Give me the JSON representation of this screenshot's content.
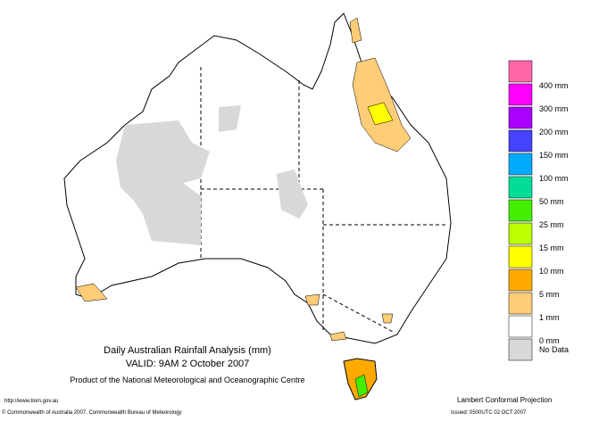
{
  "map": {
    "title": "Daily Australian Rainfall Analysis (mm)",
    "valid": "VALID: 9AM  2 October 2007",
    "product": "Product of the National Meteorological and Oceanographic Centre",
    "url": "http://www.bom.gov.au",
    "copyright": "© Commonwealth of Australia 2007, Commonwealth Bureau of Meteorology",
    "projection": "Lambert Conformal Projection",
    "issued": "Issued: 0500UTC 02 OCT 2007"
  },
  "legend": {
    "items": [
      {
        "label": "400 mm",
        "color": "#ff66aa"
      },
      {
        "label": "300 mm",
        "color": "#ff00ff"
      },
      {
        "label": "200 mm",
        "color": "#aa00ff"
      },
      {
        "label": "150 mm",
        "color": "#4444ff"
      },
      {
        "label": "100 mm",
        "color": "#00aaff"
      },
      {
        "label": "50 mm",
        "color": "#00dd99"
      },
      {
        "label": "25 mm",
        "color": "#44ee00"
      },
      {
        "label": "15 mm",
        "color": "#bbff00"
      },
      {
        "label": "10 mm",
        "color": "#ffff00"
      },
      {
        "label": "5 mm",
        "color": "#ffaa00"
      },
      {
        "label": "1 mm",
        "color": "#ffcc77"
      },
      {
        "label": "0 mm",
        "color": "#ffffff"
      },
      {
        "label": "No Data",
        "color": "#d8d8d8"
      }
    ]
  }
}
